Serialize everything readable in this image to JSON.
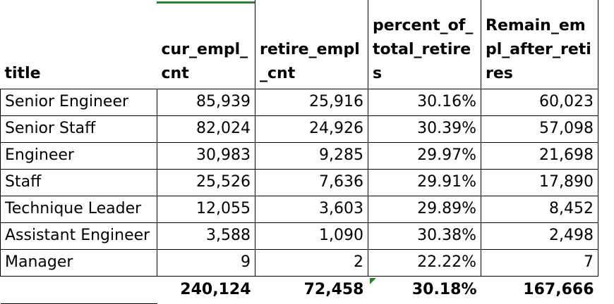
{
  "headers": {
    "title": "title",
    "cur_empl_cnt": "cur_empl_cnt",
    "retire_empl_cnt": "retire_empl_cnt",
    "percent_of_total_retires": "percent_of_total_retires",
    "remain_empl_after_retires": "Remain_empl_after_retires"
  },
  "rows": [
    {
      "title": "Senior Engineer",
      "cur": "85,939",
      "retire": "25,916",
      "pct": "30.16%",
      "remain": "60,023"
    },
    {
      "title": "Senior Staff",
      "cur": "82,024",
      "retire": "24,926",
      "pct": "30.39%",
      "remain": "57,098"
    },
    {
      "title": "Engineer",
      "cur": "30,983",
      "retire": "9,285",
      "pct": "29.97%",
      "remain": "21,698"
    },
    {
      "title": "Staff",
      "cur": "25,526",
      "retire": "7,636",
      "pct": "29.91%",
      "remain": "17,890"
    },
    {
      "title": "Technique Leader",
      "cur": "12,055",
      "retire": "3,603",
      "pct": "29.89%",
      "remain": "8,452"
    },
    {
      "title": "Assistant Engineer",
      "cur": "3,588",
      "retire": "1,090",
      "pct": "30.38%",
      "remain": "2,498"
    },
    {
      "title": "Manager",
      "cur": "9",
      "retire": "2",
      "pct": "22.22%",
      "remain": "7"
    }
  ],
  "totals": {
    "cur": "240,124",
    "retire": "72,458",
    "pct": "30.18%",
    "remain": "167,666"
  },
  "colors": {
    "selection": "#2e7d32",
    "grid": "#000000"
  }
}
